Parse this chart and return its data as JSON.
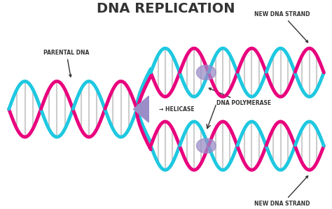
{
  "title": "DNA REPLICATION",
  "title_fontsize": 14,
  "title_fontweight": "bold",
  "bg_color": "#ffffff",
  "cyan_color": "#1EC8E0",
  "magenta_color": "#E8007D",
  "purple_color": "#9B8DC8",
  "rung_color": "#C8C8C8",
  "text_color": "#333333",
  "labels": {
    "parental_dna": "PARENTAL DNA",
    "helicase": "HELICASE",
    "dna_polymerase": "DNA POLYMERASE",
    "new_strand_top": "NEW DNA STRAND",
    "new_strand_bot": "NEW DNA STRAND"
  },
  "label_fontsize": 5.5,
  "figsize": [
    4.74,
    2.99
  ],
  "dpi": 100
}
